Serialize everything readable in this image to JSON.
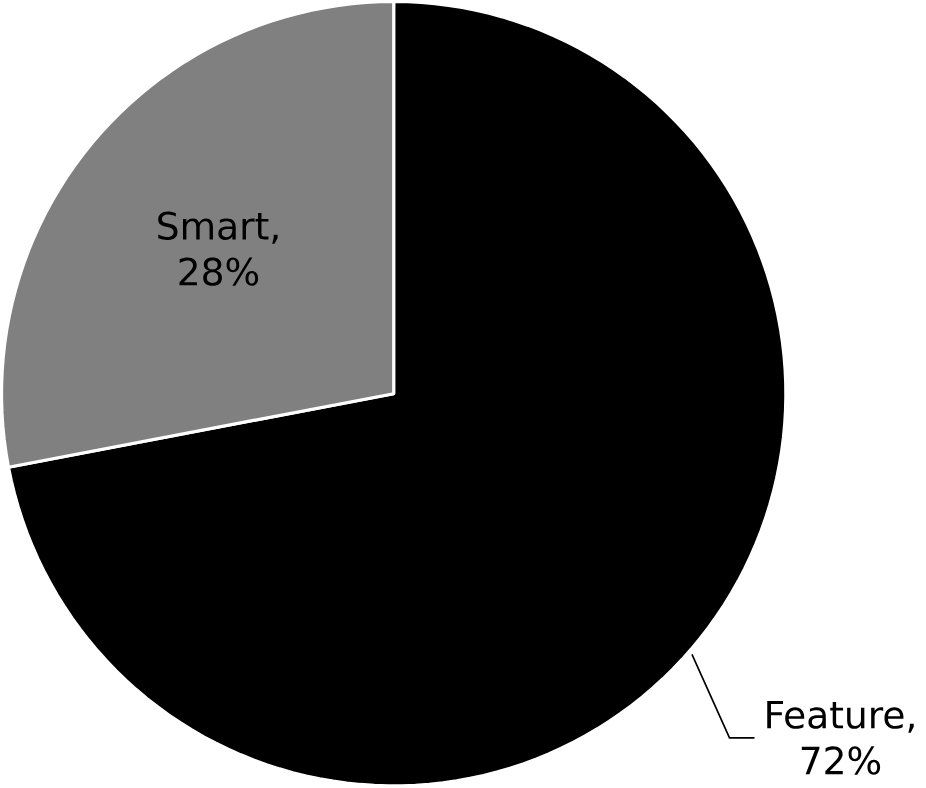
{
  "chart_data": {
    "type": "pie",
    "categories": [
      "Feature",
      "Smart"
    ],
    "values": [
      72,
      28
    ],
    "colors": [
      "#000000",
      "#808080"
    ],
    "value_labels": [
      ", 72%",
      ", 28%"
    ]
  }
}
